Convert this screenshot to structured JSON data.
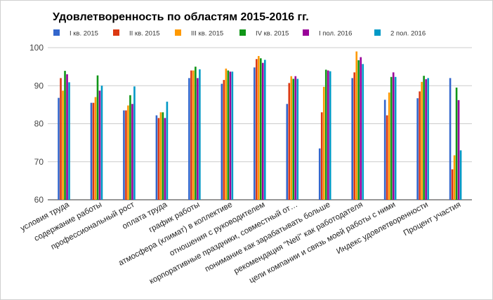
{
  "chart_data": {
    "type": "bar",
    "title": "Удовлетворенность по областям 2015-2016 гг.",
    "xlabel": "",
    "ylabel": "",
    "ylim": [
      60,
      100
    ],
    "yticks": [
      60,
      70,
      80,
      90,
      100
    ],
    "grid": true,
    "legend_position": "top",
    "categories": [
      "условия труда",
      "содержание работы",
      "профессиональный рост",
      "оплата труда",
      "график работы",
      "атмосфера (климат) в коллективе",
      "отношения с руководителем",
      "корпоративные праздники, совместный от…",
      "понимание как зарабатывать больше",
      "рекомендация \"Neti\" как работодателя",
      "цели компании и связь моей работы с ними",
      "Индекс удовлетворенности",
      "Процент участия"
    ],
    "series": [
      {
        "name": "I кв. 2015",
        "color": "#3366cc",
        "values": [
          86.8,
          85.5,
          83.5,
          82.2,
          92.0,
          90.5,
          94.8,
          85.2,
          73.5,
          92.0,
          86.3,
          86.7,
          92.0
        ]
      },
      {
        "name": "II кв. 2015",
        "color": "#dc3912",
        "values": [
          92.0,
          85.5,
          83.5,
          81.5,
          94.0,
          91.5,
          97.0,
          90.7,
          83.0,
          93.5,
          82.2,
          88.5,
          68.0
        ]
      },
      {
        "name": "III кв. 2015",
        "color": "#ff9900",
        "values": [
          88.7,
          87.0,
          84.8,
          83.0,
          94.0,
          94.5,
          97.8,
          92.5,
          89.7,
          99.0,
          88.2,
          91.0,
          71.7
        ]
      },
      {
        "name": "IV кв. 2015",
        "color": "#109618",
        "values": [
          93.9,
          92.7,
          87.5,
          83.0,
          95.0,
          94.0,
          97.2,
          91.8,
          94.2,
          96.7,
          92.3,
          92.6,
          89.5
        ]
      },
      {
        "name": "I пол. 2016",
        "color": "#990099",
        "values": [
          93.0,
          88.7,
          85.2,
          81.5,
          92.0,
          93.7,
          96.0,
          92.5,
          94.0,
          97.5,
          93.5,
          91.7,
          86.2
        ]
      },
      {
        "name": "2 пол. 2016",
        "color": "#0099c6",
        "values": [
          90.9,
          90.0,
          89.8,
          85.8,
          94.3,
          93.7,
          96.8,
          91.8,
          93.8,
          95.7,
          92.3,
          92.0,
          73.0
        ]
      }
    ]
  }
}
